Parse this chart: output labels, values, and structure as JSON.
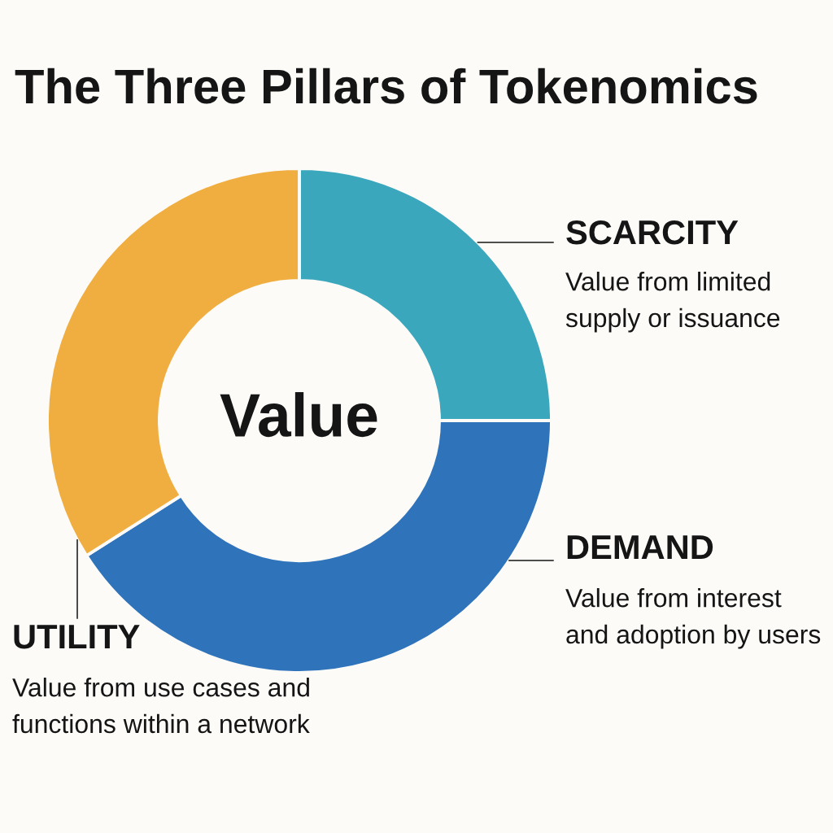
{
  "chart_data": {
    "type": "donut",
    "title": "The Three Pillars of Tokenomics",
    "categories": [
      "SCARCITY",
      "DEMAND",
      "UTILITY"
    ],
    "values": [
      25,
      41,
      34
    ],
    "colors": [
      "#3ba7bd",
      "#2f73bb",
      "#f0ae40"
    ],
    "annotations": [
      "Value",
      "Value from limited\nsupply or issuance",
      "Value from interest\nand adoption by users",
      "Value from use cases and\nfunctions within a network"
    ]
  }
}
